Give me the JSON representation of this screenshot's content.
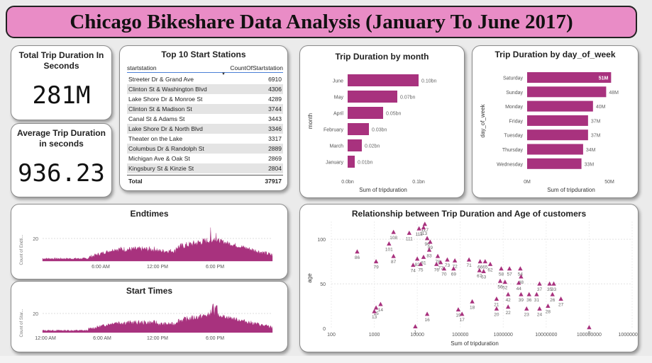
{
  "title": "Chicago Bikeshare Data Analysis (January To June 2017)",
  "kpis": {
    "total": {
      "label": "Total Trip Duration In Seconds",
      "value": "281M"
    },
    "average": {
      "label": "Average Trip Duration in seconds",
      "value": "936.23"
    }
  },
  "top_stations": {
    "title": "Top 10 Start Stations",
    "col1": "startstation",
    "col2": "CountOfStartstation",
    "rows": [
      {
        "name": "Streeter Dr & Grand Ave",
        "count": "6910"
      },
      {
        "name": "Clinton St & Washington Blvd",
        "count": "4306"
      },
      {
        "name": "Lake Shore Dr & Monroe St",
        "count": "4289"
      },
      {
        "name": "Clinton St & Madison St",
        "count": "3744"
      },
      {
        "name": "Canal St & Adams St",
        "count": "3443"
      },
      {
        "name": "Lake Shore Dr & North Blvd",
        "count": "3346"
      },
      {
        "name": "Theater on the Lake",
        "count": "3317"
      },
      {
        "name": "Columbus Dr & Randolph St",
        "count": "2889"
      },
      {
        "name": "Michigan Ave & Oak St",
        "count": "2869"
      },
      {
        "name": "Kingsbury St & Kinzie St",
        "count": "2804"
      }
    ],
    "total_label": "Total",
    "total_value": "37917"
  },
  "colors": {
    "accent": "#a8327e",
    "banner": "#e98cc6"
  },
  "chart_data": [
    {
      "type": "bar",
      "title": "Trip Duration by month",
      "orientation": "horizontal",
      "categories": [
        "June",
        "May",
        "April",
        "February",
        "March",
        "January"
      ],
      "values": [
        0.1,
        0.07,
        0.05,
        0.03,
        0.02,
        0.01
      ],
      "data_labels": [
        "0.10bn",
        "0.07bn",
        "0.05bn",
        "0.03bn",
        "0.02bn",
        "0.01bn"
      ],
      "xlabel": "Sum of tripduration",
      "ylabel": "month",
      "xticks": [
        "0.0bn",
        "0.1bn"
      ],
      "xlim": [
        0,
        0.1
      ]
    },
    {
      "type": "bar",
      "title": "Trip Duration by day_of_week",
      "orientation": "horizontal",
      "categories": [
        "Saturday",
        "Sunday",
        "Monday",
        "Friday",
        "Tuesday",
        "Thursday",
        "Wednesday"
      ],
      "values": [
        51,
        48,
        40,
        37,
        37,
        34,
        33
      ],
      "data_labels": [
        "51M",
        "48M",
        "40M",
        "37M",
        "37M",
        "34M",
        "33M"
      ],
      "xlabel": "Sum of tripduration",
      "ylabel": "day_of_week",
      "xticks": [
        "0M",
        "50M"
      ],
      "xlim": [
        0,
        53
      ]
    },
    {
      "type": "area",
      "title": "Endtimes",
      "ylabel": "Count of Endti...",
      "yticks": [
        "0",
        "20"
      ],
      "xticks": [
        "6:00 AM",
        "12:00 PM",
        "6:00 PM"
      ],
      "note": "per-minute counts across the day"
    },
    {
      "type": "area",
      "title": "Start Times",
      "ylabel": "Count of Star...",
      "yticks": [
        "0",
        "20"
      ],
      "xticks": [
        "12:00 AM",
        "6:00 AM",
        "12:00 PM",
        "6:00 PM"
      ],
      "note": "per-minute counts across the day"
    },
    {
      "type": "scatter",
      "title": "Relationship between Trip Duration and Age of customers",
      "xlabel": "Sum of tripduration",
      "ylabel": "age",
      "xscale": "log",
      "xticks": [
        "100",
        "1000",
        "10000",
        "100000",
        "1000000",
        "10000000",
        "100000000",
        "1000000000"
      ],
      "yticks": [
        "0",
        "50",
        "100"
      ],
      "points": [
        {
          "label": "117",
          "x": 15000,
          "y": 117
        },
        {
          "label": "113",
          "x": 14000,
          "y": 113
        },
        {
          "label": "112",
          "x": 11000,
          "y": 112
        },
        {
          "label": "108",
          "x": 2800,
          "y": 108
        },
        {
          "label": "111",
          "x": 6500,
          "y": 107
        },
        {
          "label": "96",
          "x": 17000,
          "y": 101
        },
        {
          "label": "99",
          "x": 20000,
          "y": 97
        },
        {
          "label": "101",
          "x": 2200,
          "y": 95
        },
        {
          "label": "83",
          "x": 19000,
          "y": 88
        },
        {
          "label": "86",
          "x": 400,
          "y": 86
        },
        {
          "label": "87",
          "x": 2800,
          "y": 81
        },
        {
          "label": "78",
          "x": 30000,
          "y": 81
        },
        {
          "label": "81",
          "x": 14000,
          "y": 80
        },
        {
          "label": "82",
          "x": 10000,
          "y": 78
        },
        {
          "label": "79",
          "x": 1100,
          "y": 75
        },
        {
          "label": "77",
          "x": 35000,
          "y": 74
        },
        {
          "label": "74",
          "x": 8000,
          "y": 71
        },
        {
          "label": "75",
          "x": 12000,
          "y": 72
        },
        {
          "label": "76",
          "x": 28000,
          "y": 72
        },
        {
          "label": "73",
          "x": 50000,
          "y": 77
        },
        {
          "label": "72",
          "x": 75000,
          "y": 76
        },
        {
          "label": "71",
          "x": 160000,
          "y": 77
        },
        {
          "label": "70",
          "x": 42000,
          "y": 67
        },
        {
          "label": "69",
          "x": 70000,
          "y": 67
        },
        {
          "label": "66",
          "x": 290000,
          "y": 75
        },
        {
          "label": "65",
          "x": 380000,
          "y": 75
        },
        {
          "label": "62",
          "x": 500000,
          "y": 72
        },
        {
          "label": "58",
          "x": 900000,
          "y": 67
        },
        {
          "label": "57",
          "x": 1400000,
          "y": 67
        },
        {
          "label": "54",
          "x": 2500000,
          "y": 67
        },
        {
          "label": "67",
          "x": 280000,
          "y": 65
        },
        {
          "label": "63",
          "x": 350000,
          "y": 64
        },
        {
          "label": "48",
          "x": 2600000,
          "y": 58
        },
        {
          "label": "56",
          "x": 850000,
          "y": 53
        },
        {
          "label": "52",
          "x": 1100000,
          "y": 52
        },
        {
          "label": "44",
          "x": 2300000,
          "y": 51
        },
        {
          "label": "37",
          "x": 7000000,
          "y": 50
        },
        {
          "label": "35",
          "x": 12000000,
          "y": 50
        },
        {
          "label": "33",
          "x": 15000000,
          "y": 50
        },
        {
          "label": "42",
          "x": 1300000,
          "y": 38
        },
        {
          "label": "39",
          "x": 2600000,
          "y": 38
        },
        {
          "label": "36",
          "x": 4000000,
          "y": 38
        },
        {
          "label": "31",
          "x": 6000000,
          "y": 38
        },
        {
          "label": "26",
          "x": 14000000,
          "y": 38
        },
        {
          "label": "27",
          "x": 22000000,
          "y": 33
        },
        {
          "label": "21",
          "x": 700000,
          "y": 33
        },
        {
          "label": "22",
          "x": 1300000,
          "y": 24
        },
        {
          "label": "23",
          "x": 3500000,
          "y": 22
        },
        {
          "label": "24",
          "x": 7000000,
          "y": 22
        },
        {
          "label": "28",
          "x": 11000000,
          "y": 25
        },
        {
          "label": "18",
          "x": 190000,
          "y": 30
        },
        {
          "label": "19",
          "x": 90000,
          "y": 21
        },
        {
          "label": "20",
          "x": 700000,
          "y": 22
        },
        {
          "label": "14",
          "x": 1400,
          "y": 27
        },
        {
          "label": "15",
          "x": 1100,
          "y": 23
        },
        {
          "label": "13",
          "x": 1000,
          "y": 19
        },
        {
          "label": "16",
          "x": 17000,
          "y": 16
        },
        {
          "label": "17",
          "x": 110000,
          "y": 16
        },
        {
          "label": "1",
          "x": 9000,
          "y": 2
        },
        {
          "label": "0",
          "x": 100000000,
          "y": 1
        }
      ]
    }
  ]
}
